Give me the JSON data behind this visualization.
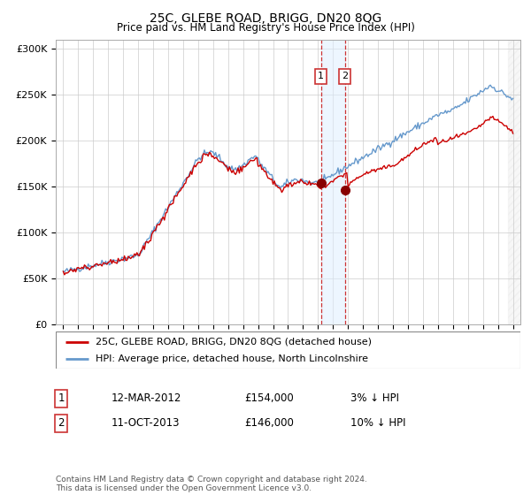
{
  "title": "25C, GLEBE ROAD, BRIGG, DN20 8QG",
  "subtitle": "Price paid vs. HM Land Registry's House Price Index (HPI)",
  "legend_label_red": "25C, GLEBE ROAD, BRIGG, DN20 8QG (detached house)",
  "legend_label_blue": "HPI: Average price, detached house, North Lincolnshire",
  "transaction1_date": "12-MAR-2012",
  "transaction1_price": "£154,000",
  "transaction1_hpi": "3% ↓ HPI",
  "transaction2_date": "11-OCT-2013",
  "transaction2_price": "£146,000",
  "transaction2_hpi": "10% ↓ HPI",
  "footer": "Contains HM Land Registry data © Crown copyright and database right 2024.\nThis data is licensed under the Open Government Licence v3.0.",
  "color_red": "#cc0000",
  "color_blue": "#6699cc",
  "color_dashed": "#cc3333",
  "color_shade": "#ddeeff",
  "ylim_min": 0,
  "ylim_max": 310000,
  "yticks": [
    0,
    50000,
    100000,
    150000,
    200000,
    250000,
    300000
  ],
  "ytick_labels": [
    "£0",
    "£50K",
    "£100K",
    "£150K",
    "£200K",
    "£250K",
    "£300K"
  ],
  "t1_x": 2012.19,
  "t1_y": 154000,
  "t2_x": 2013.78,
  "t2_y": 146000,
  "xmin": 1994.5,
  "xmax": 2025.5
}
